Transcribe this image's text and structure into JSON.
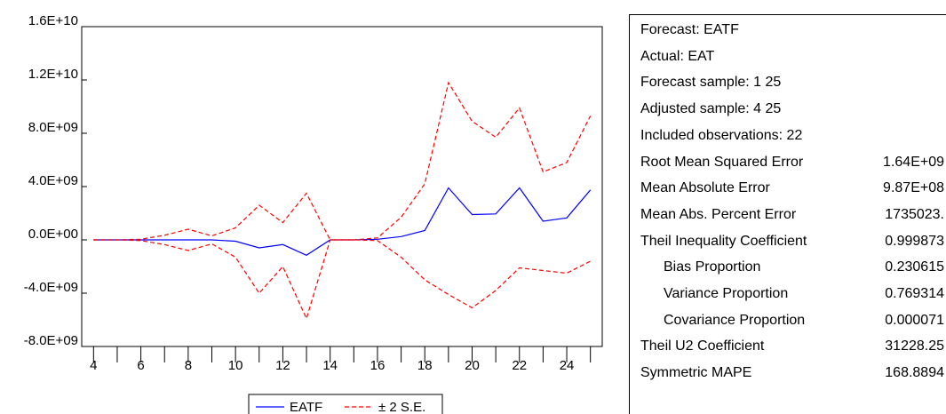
{
  "chart_data": {
    "type": "line",
    "x": [
      4,
      5,
      6,
      7,
      8,
      9,
      10,
      11,
      12,
      13,
      14,
      15,
      16,
      17,
      18,
      19,
      20,
      21,
      22,
      23,
      24,
      25
    ],
    "x_ticks": [
      "4",
      "6",
      "8",
      "10",
      "12",
      "14",
      "16",
      "18",
      "20",
      "22",
      "24"
    ],
    "y_ticks": [
      "-8.0E+09",
      "-4.0E+09",
      "0.0E+00",
      "4.0E+09",
      "8.0E+09",
      "1.2E+10",
      "1.6E+10"
    ],
    "ylim": [
      -8000000000.0,
      16000000000.0
    ],
    "xlim": [
      3.5,
      25.5
    ],
    "series": [
      {
        "name": "EATF",
        "color": "#0000ff",
        "style": "solid",
        "values": [
          0,
          0,
          0,
          0,
          0,
          0,
          -100000000.0,
          -600000000.0,
          -350000000.0,
          -1150000000.0,
          0,
          0,
          50000000.0,
          250000000.0,
          700000000.0,
          3900000000.0,
          1900000000.0,
          1950000000.0,
          3900000000.0,
          1400000000.0,
          1650000000.0,
          3750000000.0
        ]
      },
      {
        "name": "± 2 S.E.",
        "color": "#ff0000",
        "style": "dashed",
        "values": [
          0,
          0,
          50000000.0,
          350000000.0,
          800000000.0,
          300000000.0,
          900000000.0,
          2600000000.0,
          1300000000.0,
          3500000000.0,
          0,
          0,
          150000000.0,
          1700000000.0,
          4200000000.0,
          11800000000.0,
          8900000000.0,
          7700000000.0,
          9900000000.0,
          5100000000.0,
          5800000000.0,
          9300000000.0
        ]
      },
      {
        "name": "",
        "color": "#ff0000",
        "style": "dashed",
        "values": [
          0,
          0,
          -50000000.0,
          -350000000.0,
          -800000000.0,
          -300000000.0,
          -1300000000.0,
          -4000000000.0,
          -2000000000.0,
          -5900000000.0,
          0,
          0,
          -50000000.0,
          -1300000000.0,
          -3000000000.0,
          -4100000000.0,
          -5100000000.0,
          -3800000000.0,
          -2100000000.0,
          -2300000000.0,
          -2500000000.0,
          -1600000000.0
        ]
      }
    ],
    "legend": {
      "position": "bottom-center",
      "entries": [
        "EATF",
        "± 2 S.E."
      ]
    }
  },
  "stats": [
    {
      "label": "Forecast: EATF",
      "value": "",
      "indent": false
    },
    {
      "label": "Actual: EAT",
      "value": "",
      "indent": false
    },
    {
      "label": "Forecast sample: 1 25",
      "value": "",
      "indent": false
    },
    {
      "label": "Adjusted sample: 4 25",
      "value": "",
      "indent": false
    },
    {
      "label": "Included observations: 22",
      "value": "",
      "indent": false
    },
    {
      "label": "Root Mean Squared Error",
      "value": "1.64E+09",
      "indent": false
    },
    {
      "label": "Mean Absolute Error",
      "value": "9.87E+08",
      "indent": false
    },
    {
      "label": "Mean Abs. Percent Error",
      "value": "1735023.",
      "indent": false
    },
    {
      "label": "Theil Inequality Coefficient",
      "value": "0.999873",
      "indent": false
    },
    {
      "label": "Bias Proportion",
      "value": "0.230615",
      "indent": true
    },
    {
      "label": "Variance Proportion",
      "value": "0.769314",
      "indent": true
    },
    {
      "label": "Covariance Proportion",
      "value": "0.000071",
      "indent": true
    },
    {
      "label": "Theil U2 Coefficient",
      "value": "31228.25",
      "indent": false
    },
    {
      "label": "Symmetric MAPE",
      "value": "168.8894",
      "indent": false
    }
  ]
}
